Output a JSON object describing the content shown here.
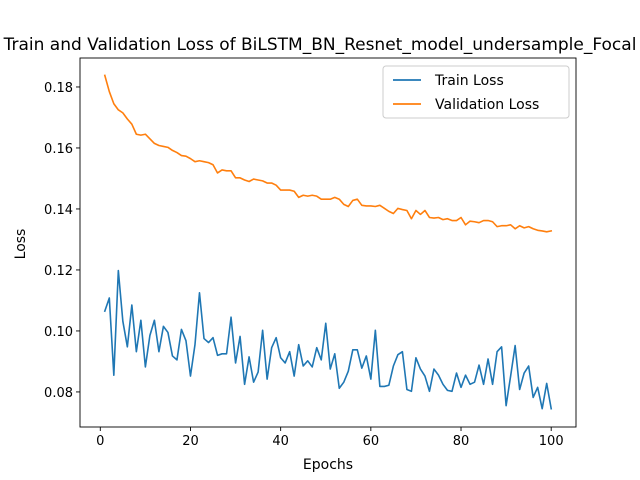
{
  "chart_data": {
    "type": "line",
    "title": "Train and Validation Loss of BiLSTM_BN_Resnet_model_undersample_Focal",
    "xlabel": "Epochs",
    "ylabel": "Loss",
    "xlim": [
      -4.5,
      105.5
    ],
    "ylim": [
      0.0685,
      0.1895
    ],
    "xticks": [
      0,
      20,
      40,
      60,
      80,
      100
    ],
    "yticks": [
      0.08,
      0.1,
      0.12,
      0.14,
      0.16,
      0.18
    ],
    "ytick_labels": [
      "0.08",
      "0.10",
      "0.12",
      "0.14",
      "0.16",
      "0.18"
    ],
    "grid": false,
    "legend_position": "top-right",
    "x": [
      1,
      2,
      3,
      4,
      5,
      6,
      7,
      8,
      9,
      10,
      11,
      12,
      13,
      14,
      15,
      16,
      17,
      18,
      19,
      20,
      21,
      22,
      23,
      24,
      25,
      26,
      27,
      28,
      29,
      30,
      31,
      32,
      33,
      34,
      35,
      36,
      37,
      38,
      39,
      40,
      41,
      42,
      43,
      44,
      45,
      46,
      47,
      48,
      49,
      50,
      51,
      52,
      53,
      54,
      55,
      56,
      57,
      58,
      59,
      60,
      61,
      62,
      63,
      64,
      65,
      66,
      67,
      68,
      69,
      70,
      71,
      72,
      73,
      74,
      75,
      76,
      77,
      78,
      79,
      80,
      81,
      82,
      83,
      84,
      85,
      86,
      87,
      88,
      89,
      90,
      91,
      92,
      93,
      94,
      95,
      96,
      97,
      98,
      99,
      100
    ],
    "series": [
      {
        "name": "Train Loss",
        "color": "#1f77b4",
        "values": [
          0.1065,
          0.1108,
          0.0855,
          0.1198,
          0.1032,
          0.0948,
          0.1085,
          0.0932,
          0.1035,
          0.0882,
          0.0985,
          0.1035,
          0.0932,
          0.1015,
          0.0995,
          0.0918,
          0.0905,
          0.1005,
          0.0968,
          0.0852,
          0.0955,
          0.1125,
          0.0975,
          0.0962,
          0.0978,
          0.092,
          0.0925,
          0.0925,
          0.1045,
          0.0895,
          0.0982,
          0.0825,
          0.0915,
          0.0832,
          0.0865,
          0.1002,
          0.0842,
          0.0945,
          0.0978,
          0.0912,
          0.0895,
          0.0932,
          0.0852,
          0.0955,
          0.0885,
          0.0902,
          0.0882,
          0.0945,
          0.0905,
          0.1025,
          0.0875,
          0.0925,
          0.0812,
          0.0832,
          0.0868,
          0.0938,
          0.0938,
          0.0878,
          0.0918,
          0.0842,
          0.1002,
          0.0818,
          0.0818,
          0.0822,
          0.0885,
          0.0922,
          0.0932,
          0.0808,
          0.0802,
          0.0912,
          0.0875,
          0.0852,
          0.0802,
          0.0875,
          0.0855,
          0.0825,
          0.0805,
          0.0802,
          0.0862,
          0.0815,
          0.0855,
          0.0825,
          0.0832,
          0.0888,
          0.0825,
          0.0908,
          0.0825,
          0.0932,
          0.0948,
          0.0755,
          0.0852,
          0.0952,
          0.0808,
          0.0862,
          0.0885,
          0.0782,
          0.0815,
          0.0745,
          0.0828,
          0.0745
        ]
      },
      {
        "name": "Validation Loss",
        "color": "#ff7f0e",
        "values": [
          0.1838,
          0.1785,
          0.1745,
          0.1725,
          0.1715,
          0.1695,
          0.1678,
          0.1645,
          0.1642,
          0.1645,
          0.163,
          0.1615,
          0.1608,
          0.1605,
          0.1602,
          0.1592,
          0.1585,
          0.1575,
          0.1573,
          0.1565,
          0.1555,
          0.1558,
          0.1555,
          0.1552,
          0.1545,
          0.1518,
          0.1528,
          0.1525,
          0.1525,
          0.1502,
          0.1502,
          0.1495,
          0.149,
          0.1498,
          0.1495,
          0.1492,
          0.1485,
          0.1485,
          0.1478,
          0.1462,
          0.1462,
          0.1462,
          0.1458,
          0.1438,
          0.1445,
          0.1442,
          0.1445,
          0.1442,
          0.1432,
          0.1432,
          0.1432,
          0.1438,
          0.1432,
          0.1415,
          0.1408,
          0.1428,
          0.1432,
          0.1412,
          0.141,
          0.141,
          0.1408,
          0.1412,
          0.1402,
          0.1392,
          0.1385,
          0.1402,
          0.1398,
          0.1395,
          0.1368,
          0.1395,
          0.1382,
          0.1395,
          0.1372,
          0.137,
          0.1372,
          0.1365,
          0.1368,
          0.1362,
          0.1362,
          0.1372,
          0.1348,
          0.136,
          0.1358,
          0.1355,
          0.1362,
          0.1362,
          0.1358,
          0.1342,
          0.1345,
          0.1345,
          0.1348,
          0.1335,
          0.1345,
          0.1338,
          0.1342,
          0.1335,
          0.133,
          0.1328,
          0.1325,
          0.1328
        ]
      }
    ]
  }
}
